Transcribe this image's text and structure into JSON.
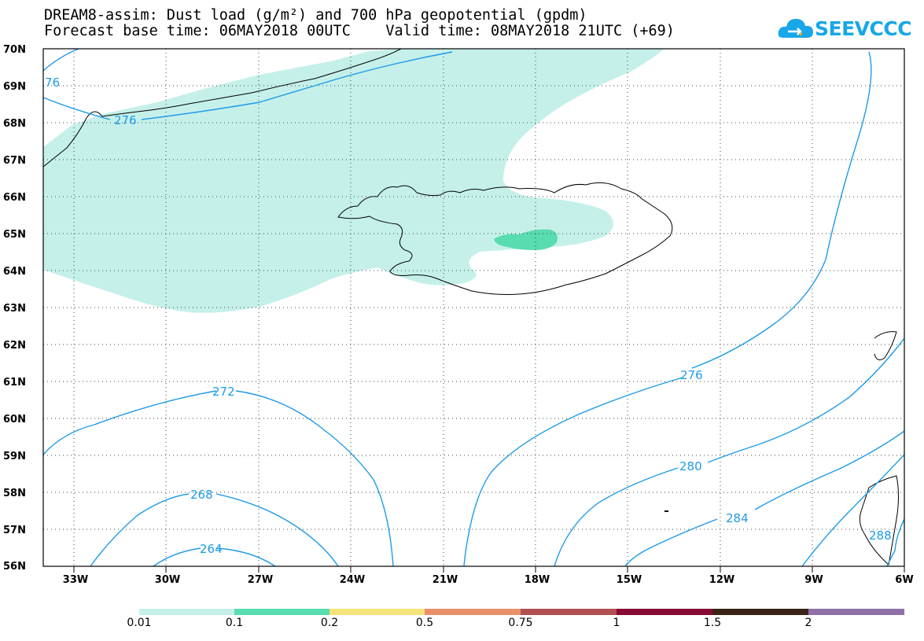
{
  "title": {
    "line1": "DREAM8-assim: Dust load (g/m²) and 700 hPa geopotential (gpdm)",
    "line2": "Forecast base time: 06MAY2018 00UTC    Valid time: 08MAY2018 21UTC (+69)"
  },
  "logo": {
    "text": "SEEVCCC"
  },
  "map": {
    "lat_labels": [
      "70N",
      "69N",
      "68N",
      "67N",
      "66N",
      "65N",
      "64N",
      "63N",
      "62N",
      "61N",
      "60N",
      "59N",
      "58N",
      "57N",
      "56N"
    ],
    "lon_labels": [
      "33W",
      "30W",
      "27W",
      "24W",
      "21W",
      "18W",
      "15W",
      "12W",
      "9W",
      "6W"
    ],
    "contour_labels": {
      "c276_top": "276",
      "c276_left": "76",
      "c272": "272",
      "c268": "268",
      "c264": "264",
      "c276_right": "276",
      "c280": "280",
      "c284": "284",
      "c288": "288"
    },
    "contour_color": "#1e9be8"
  },
  "colorbar": {
    "labels": [
      "0.01",
      "0.1",
      "0.2",
      "0.5",
      "0.75",
      "1",
      "1.5",
      "2"
    ],
    "colors": [
      "#c5f0ea",
      "#58dcb0",
      "#f5e47a",
      "#e8906a",
      "#b05050",
      "#880a34",
      "#3a2418",
      "#9070a8"
    ]
  }
}
